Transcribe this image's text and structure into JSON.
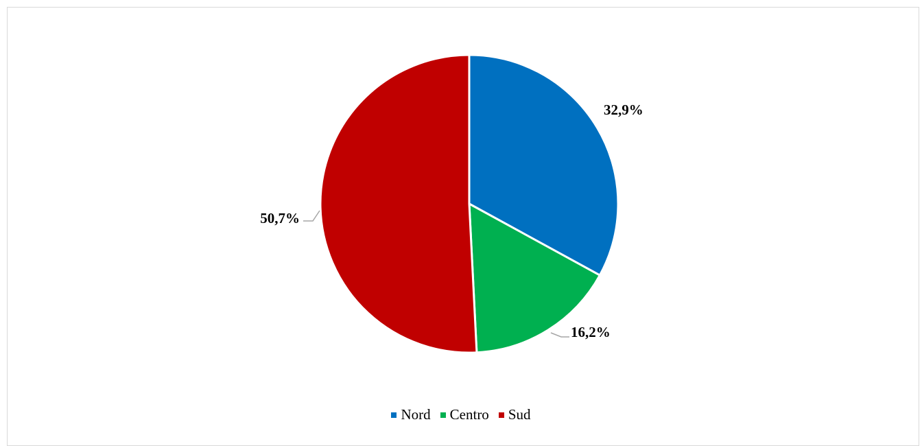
{
  "chart_data": {
    "type": "pie",
    "categories": [
      "Nord",
      "Centro",
      "Sud"
    ],
    "values": [
      32.9,
      16.2,
      50.7
    ],
    "labels": [
      "32,9%",
      "16,2%",
      "50,7%"
    ],
    "colors": [
      "#0070C0",
      "#00B050",
      "#C00000"
    ],
    "start_angle": "12 o'clock",
    "direction": "clockwise",
    "legend_position": "bottom",
    "title": ""
  }
}
